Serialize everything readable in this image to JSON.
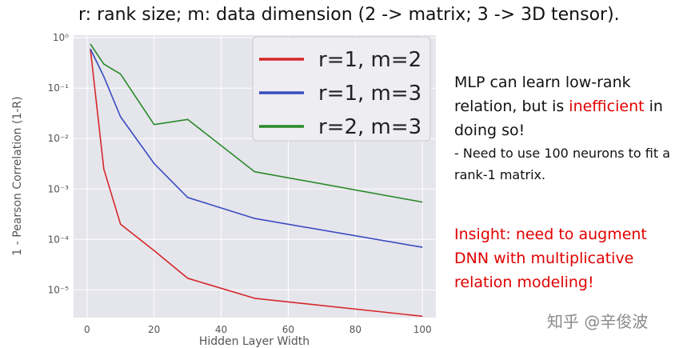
{
  "title": "r: rank size;  m: data dimension (2 -> matrix; 3 -> 3D tensor).",
  "notes": {
    "line1_before": "MLP can learn low-rank relation, but is ",
    "line1_highlight": "inefficient",
    "line1_after": " in doing so!",
    "line2": "- Need to use 100 neurons to fit a rank-1 matrix."
  },
  "insight": "Insight: need to augment DNN with multiplicative relation modeling!",
  "watermark": "知乎 @辛俊波",
  "chart_data": {
    "type": "line",
    "xlabel": "Hidden Layer Width",
    "ylabel": "1 - Pearson Correlation (1-R)",
    "xlim": [
      -4,
      104
    ],
    "ylim_log10": [
      -5.55,
      0.05
    ],
    "y_scale": "log",
    "x_ticks": [
      0,
      20,
      40,
      60,
      80,
      100
    ],
    "x_tick_labels": [
      "0",
      "20",
      "40",
      "60",
      "80",
      "100"
    ],
    "y_ticks_log10": [
      0,
      -1,
      -2,
      -3,
      -4,
      -5
    ],
    "y_tick_labels": [
      "10⁰",
      "10⁻¹",
      "10⁻²",
      "10⁻³",
      "10⁻⁴",
      "10⁻⁵"
    ],
    "grid": true,
    "legend_position": "top-right",
    "background": "#e5e5ec",
    "series": [
      {
        "name": "r=1, m=2",
        "color": "#d62728",
        "x": [
          1,
          5,
          10,
          20,
          30,
          50,
          100
        ],
        "y": [
          0.6,
          0.0025,
          0.0002,
          6e-05,
          1.7e-05,
          6.8e-06,
          3e-06
        ]
      },
      {
        "name": "r=1, m=3",
        "color": "#3b4cc0",
        "x": [
          1,
          5,
          10,
          20,
          30,
          50,
          100
        ],
        "y": [
          0.6,
          0.17,
          0.027,
          0.0032,
          0.00068,
          0.00026,
          7e-05
        ]
      },
      {
        "name": "r=2, m=3",
        "color": "#2a8a2a",
        "x": [
          1,
          5,
          10,
          20,
          30,
          50,
          100
        ],
        "y": [
          0.75,
          0.3,
          0.19,
          0.019,
          0.024,
          0.0022,
          0.00055
        ]
      }
    ]
  }
}
